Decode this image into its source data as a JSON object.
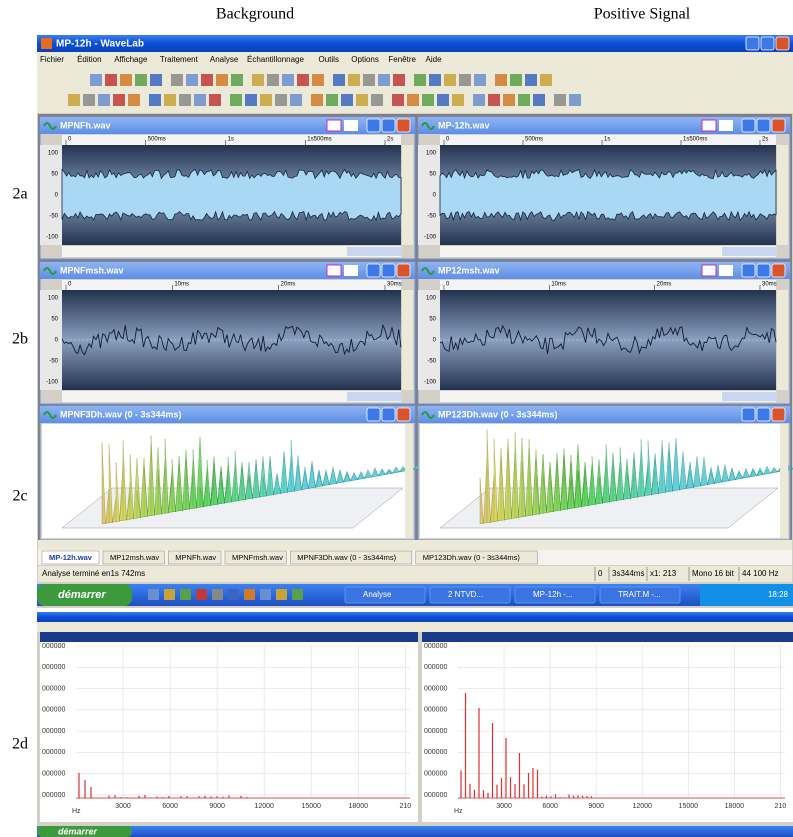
{
  "captions": {
    "columns": [
      "Background",
      "Positive Signal"
    ],
    "rows": [
      "2a",
      "2b",
      "2c",
      "2d"
    ]
  },
  "wavelab": {
    "title": "MP-12h - WaveLab",
    "menu": [
      "Fichier",
      "Édition",
      "Affichage",
      "Traitement",
      "Analyse",
      "Échantillonnage",
      "Outils",
      "Options",
      "Fenêtre",
      "Aide"
    ],
    "windows": [
      {
        "title": "MPNFh.wav",
        "kind": "band",
        "ruler": [
          "0",
          "500ms",
          "1s",
          "1s500ms",
          "2s"
        ],
        "levels": [
          "100",
          "50",
          "0",
          "-50",
          "-100"
        ]
      },
      {
        "title": "MP-12h.wav",
        "kind": "band",
        "ruler": [
          "0",
          "500ms",
          "1s",
          "1s500ms",
          "2s"
        ],
        "levels": [
          "100",
          "50",
          "0",
          "-50",
          "-100"
        ]
      },
      {
        "title": "MPNFmsh.wav",
        "kind": "trace",
        "ruler": [
          "0",
          "10ms",
          "20ms",
          "30ms"
        ],
        "levels": [
          "100",
          "50",
          "0",
          "-50",
          "-100"
        ]
      },
      {
        "title": "MP12msh.wav",
        "kind": "trace",
        "ruler": [
          "0",
          "10ms",
          "20ms",
          "30ms"
        ],
        "levels": [
          "100",
          "50",
          "0",
          "-50",
          "-100"
        ]
      },
      {
        "title": "MPNF3Dh.wav (0 - 3s344ms)",
        "kind": "3d"
      },
      {
        "title": "MP123Dh.wav (0 - 3s344ms)",
        "kind": "3d"
      }
    ],
    "tabs": [
      "MP-12h.wav",
      "MP12msh.wav",
      "MPNFh.wav",
      "MPNFmsh.wav",
      "MPNF3Dh.wav (0 - 3s344ms)",
      "MP123Dh.wav (0 - 3s344ms)"
    ],
    "status": {
      "message": "Analyse terminé en1s 742ms",
      "fields": [
        "0",
        "3s344ms",
        "x1: 213",
        "Mono 16 bit",
        "44 100 Hz"
      ]
    },
    "taskbar": {
      "start": "démarrer",
      "items": [
        "Analyse",
        "2 NTVD...",
        "MP-12h -...",
        "TRAIT.M -..."
      ],
      "clock": "18:28"
    }
  },
  "spectrum": {
    "panels": [
      {
        "levels": [
          "000000",
          "000000",
          "000000",
          "000000",
          "000000",
          "000000",
          "000000",
          "000000"
        ],
        "freq_ticks": [
          "3000",
          "6000",
          "9000",
          "12000",
          "15000",
          "18000",
          "210"
        ],
        "unit": "Hz"
      },
      {
        "levels": [
          "000000",
          "000000",
          "000000",
          "000000",
          "000000",
          "000000",
          "000000",
          "000000"
        ],
        "freq_ticks": [
          "3000",
          "6000",
          "9000",
          "12000",
          "15000",
          "18000",
          "210"
        ],
        "unit": "Hz"
      }
    ],
    "taskbar": {
      "start": "démarrer"
    }
  }
}
